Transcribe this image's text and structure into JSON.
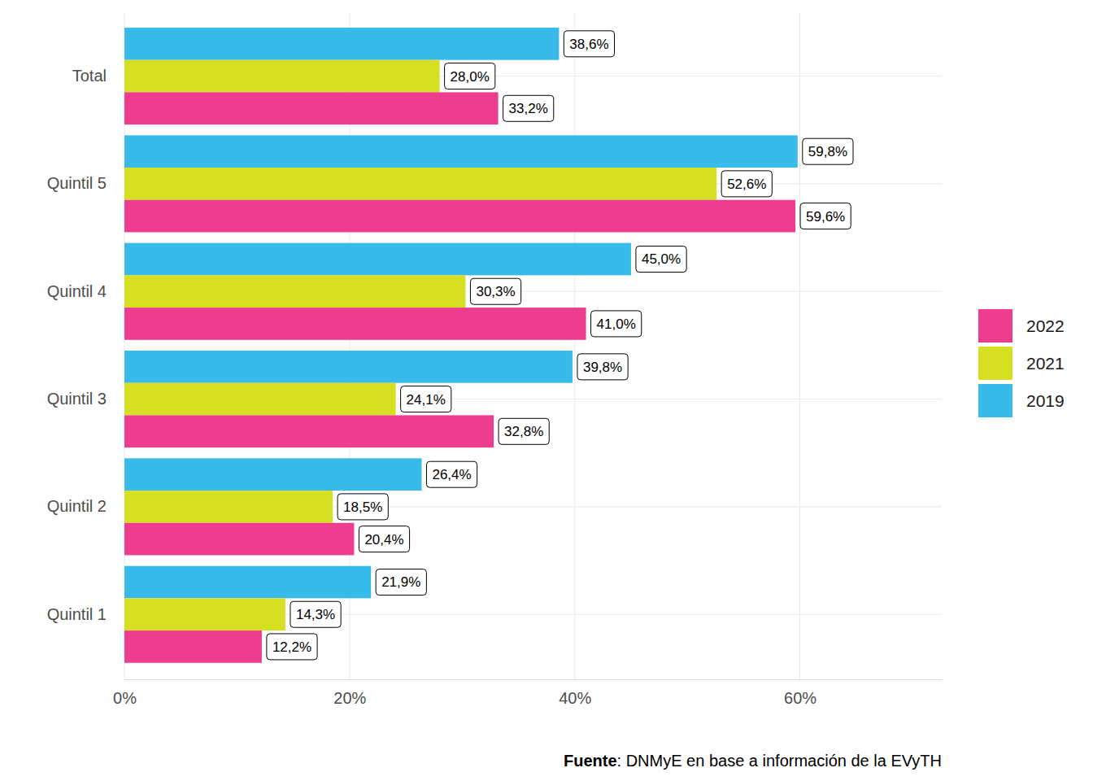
{
  "chart_data": {
    "type": "bar",
    "orientation": "horizontal",
    "categories": [
      "Total",
      "Quintil 5",
      "Quintil 4",
      "Quintil 3",
      "Quintil 2",
      "Quintil 1"
    ],
    "series": [
      {
        "name": "2019",
        "color": "#38bbeb",
        "values": [
          38.6,
          59.8,
          45.0,
          39.8,
          26.4,
          21.9
        ],
        "value_labels": [
          "38,6%",
          "59,8%",
          "45,0%",
          "39,8%",
          "26,4%",
          "21,9%"
        ]
      },
      {
        "name": "2021",
        "color": "#d7df23",
        "values": [
          28.0,
          52.6,
          30.3,
          24.1,
          18.5,
          14.3
        ],
        "value_labels": [
          "28,0%",
          "52,6%",
          "30,3%",
          "24,1%",
          "18,5%",
          "14,3%"
        ]
      },
      {
        "name": "2022",
        "color": "#ee3d8f",
        "values": [
          33.2,
          59.6,
          41.0,
          32.8,
          20.4,
          12.2
        ],
        "value_labels": [
          "33,2%",
          "59,6%",
          "41,0%",
          "32,8%",
          "20,4%",
          "12,2%"
        ]
      }
    ],
    "xlim": [
      0,
      72.6
    ],
    "xticks": [
      {
        "value": 0,
        "label": "0%"
      },
      {
        "value": 20,
        "label": "20%"
      },
      {
        "value": 40,
        "label": "40%"
      },
      {
        "value": 60,
        "label": "60%"
      }
    ],
    "grid": true,
    "legend": "right",
    "data_labels": true,
    "caption_label": "Fuente",
    "caption": ": DNMyE en base a información de la EVyTH"
  }
}
